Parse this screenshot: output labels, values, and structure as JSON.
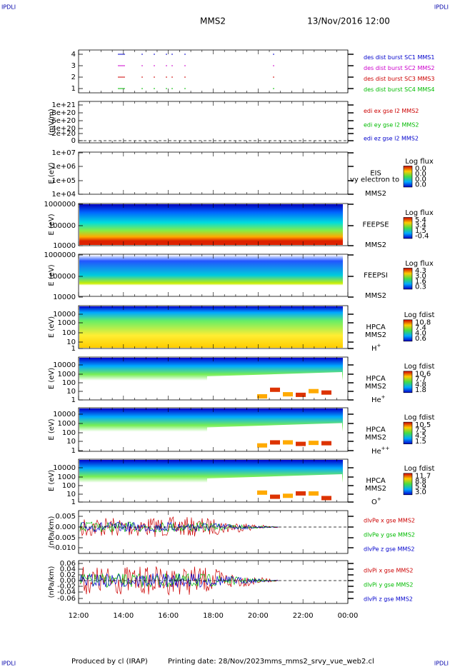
{
  "header": {
    "corner_label": "IPDLI",
    "spacecraft": "MMS2",
    "date": "13/Nov/2016 12:00"
  },
  "panels": [
    {
      "ylabel": null,
      "yticks": [
        "4",
        "3",
        "2",
        "1"
      ],
      "legend": [
        {
          "text": "des dist burst SC1 MMS1",
          "color": "#0000cc"
        },
        {
          "text": "des dist burst SC2 MMS2",
          "color": "#cc00cc"
        },
        {
          "text": "des dist burst SC3 MMS3",
          "color": "#cc0000"
        },
        {
          "text": "des dist burst SC4 MMS4",
          "color": "#00bb00"
        }
      ]
    },
    {
      "ylabel": "(mV/m)",
      "yticks": [
        "1e+21",
        "8e+20",
        "6e+20",
        "4e+20",
        "2e+20",
        "0"
      ],
      "legend": [
        {
          "text": "edi ex gse l2 MMS2",
          "color": "#cc0000"
        },
        {
          "text": "edi ey gse l2 MMS2",
          "color": "#00bb00"
        },
        {
          "text": "edi ez gse l2 MMS2",
          "color": "#0000cc"
        }
      ]
    },
    {
      "ylabel": "E (eV)",
      "yticks": [
        "1e+07",
        "1e+06",
        "1e+05",
        "1e+04"
      ],
      "instrument": "EIS",
      "spacecraft": "MMS2",
      "note": "vy electron to",
      "colorbar_title": "Log flux",
      "colorbar_labels": [
        "0.0",
        "0.0",
        "0.0",
        "0.0"
      ]
    },
    {
      "ylabel": "E (eV)",
      "yticks": [
        "1000000",
        "100000",
        "10000"
      ],
      "instrument": "FEEPSE",
      "spacecraft": "MMS2",
      "colorbar_title": "Log flux",
      "colorbar_labels": [
        "5.4",
        "3.4",
        "1.5",
        "-0.4"
      ]
    },
    {
      "ylabel": "E (eV)",
      "yticks": [
        "1000000",
        "100000",
        "10000"
      ],
      "instrument": "FEEPSI",
      "spacecraft": "MMS2",
      "colorbar_title": "Log flux",
      "colorbar_labels": [
        "4.3",
        "3.0",
        "1.6",
        "0.3"
      ]
    },
    {
      "ylabel": "E (eV)",
      "yticks": [
        "10000",
        "1000",
        "100",
        "10",
        "1"
      ],
      "instrument": "HPCA",
      "spacecraft": "MMS2",
      "species": "H",
      "species_sup": "+",
      "colorbar_title": "Log fdist",
      "colorbar_labels": [
        "10.8",
        "7.4",
        "4.0",
        "0.6"
      ]
    },
    {
      "ylabel": "E (eV)",
      "yticks": [
        "10000",
        "1000",
        "100",
        "10",
        "1"
      ],
      "instrument": "HPCA",
      "spacecraft": "MMS2",
      "species": "He",
      "species_sup": "+",
      "colorbar_title": "Log fdist",
      "colorbar_labels": [
        "10.6",
        "7.7",
        "4.8",
        "1.8"
      ]
    },
    {
      "ylabel": "E (eV)",
      "yticks": [
        "10000",
        "1000",
        "100",
        "10",
        "1"
      ],
      "instrument": "HPCA",
      "spacecraft": "MMS2",
      "species": "He",
      "species_sup": "++",
      "colorbar_title": "Log fdist",
      "colorbar_labels": [
        "10.5",
        "7.5",
        "4.5",
        "1.5"
      ]
    },
    {
      "ylabel": "E (eV)",
      "yticks": [
        "10000",
        "1000",
        "100",
        "10",
        "1"
      ],
      "instrument": "HPCA",
      "spacecraft": "MMS2",
      "species": "O",
      "species_sup": "+",
      "colorbar_title": "Log fdist",
      "colorbar_labels": [
        "11.7",
        "8.8",
        "5.9",
        "3.0"
      ]
    },
    {
      "ylabel": "(nPa/km)",
      "yticks": [
        "0.005",
        "0.000",
        "-0.005",
        "-0.010"
      ],
      "legend": [
        {
          "text": "dlvPe x gse MMS2",
          "color": "#cc0000"
        },
        {
          "text": "dlvPe y gse MMS2",
          "color": "#00bb00"
        },
        {
          "text": "dlvPe z gse MMS2",
          "color": "#0000cc"
        }
      ]
    },
    {
      "ylabel": "(nPa/km)",
      "yticks": [
        "0.06",
        "0.04",
        "0.02",
        "0.00",
        "-0.02",
        "-0.04",
        "-0.06"
      ],
      "legend": [
        {
          "text": "dlvPi x gse MMS2",
          "color": "#cc0000"
        },
        {
          "text": "dlvPi y gse MMS2",
          "color": "#00bb00"
        },
        {
          "text": "dlvPi z gse MMS2",
          "color": "#0000cc"
        }
      ]
    }
  ],
  "xticks": [
    "12:00",
    "14:00",
    "16:00",
    "18:00",
    "20:00",
    "22:00",
    "00:00"
  ],
  "footer": {
    "credit": "Produced by cl (IRAP)",
    "printing": "Printing date: 28/Nov/2023",
    "file": "mms_mms2_srvy_vue_web2.cl"
  }
}
